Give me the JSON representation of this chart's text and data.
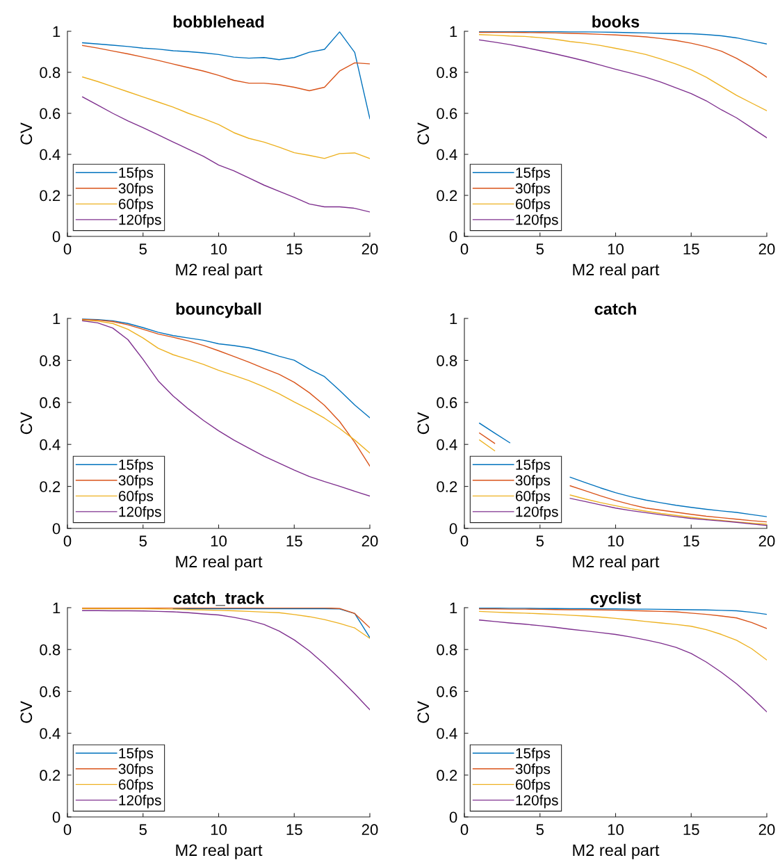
{
  "chart_data": [
    {
      "type": "line",
      "title": "bobblehead",
      "xlabel": "M2 real part",
      "ylabel": "CV",
      "x": [
        1,
        2,
        3,
        4,
        5,
        6,
        7,
        8,
        9,
        10,
        11,
        12,
        13,
        14,
        15,
        16,
        17,
        18,
        19,
        20
      ],
      "xlim": [
        0,
        20
      ],
      "ylim": [
        0,
        1
      ],
      "xticks": [
        0,
        5,
        10,
        15,
        20
      ],
      "yticks": [
        0,
        0.2,
        0.4,
        0.6,
        0.8,
        1
      ],
      "legend": "bottom left",
      "series": [
        {
          "name": "15fps",
          "color": "#0072bd",
          "values": [
            0.944,
            0.938,
            0.932,
            0.926,
            0.918,
            0.913,
            0.905,
            0.901,
            0.895,
            0.887,
            0.874,
            0.869,
            0.872,
            0.862,
            0.872,
            0.898,
            0.912,
            0.997,
            0.897,
            0.574
          ]
        },
        {
          "name": "30fps",
          "color": "#d95319",
          "values": [
            0.931,
            0.918,
            0.904,
            0.89,
            0.874,
            0.858,
            0.84,
            0.823,
            0.806,
            0.785,
            0.761,
            0.747,
            0.747,
            0.74,
            0.727,
            0.71,
            0.727,
            0.806,
            0.846,
            0.841
          ]
        },
        {
          "name": "60fps",
          "color": "#edb120",
          "values": [
            0.777,
            0.755,
            0.73,
            0.705,
            0.68,
            0.655,
            0.63,
            0.6,
            0.574,
            0.545,
            0.506,
            0.478,
            0.46,
            0.435,
            0.408,
            0.395,
            0.38,
            0.404,
            0.407,
            0.38
          ]
        },
        {
          "name": "120fps",
          "color": "#7e2f8e",
          "values": [
            0.68,
            0.64,
            0.6,
            0.563,
            0.53,
            0.495,
            0.46,
            0.425,
            0.39,
            0.348,
            0.32,
            0.285,
            0.25,
            0.22,
            0.19,
            0.158,
            0.144,
            0.144,
            0.137,
            0.119
          ]
        }
      ]
    },
    {
      "type": "line",
      "title": "books",
      "xlabel": "M2 real part",
      "ylabel": "CV",
      "x": [
        1,
        2,
        3,
        4,
        5,
        6,
        7,
        8,
        9,
        10,
        11,
        12,
        13,
        14,
        15,
        16,
        17,
        18,
        19,
        20
      ],
      "xlim": [
        0,
        20
      ],
      "ylim": [
        0,
        1
      ],
      "xticks": [
        0,
        5,
        10,
        15,
        20
      ],
      "yticks": [
        0,
        0.2,
        0.4,
        0.6,
        0.8,
        1
      ],
      "legend": "bottom left",
      "series": [
        {
          "name": "15fps",
          "color": "#0072bd",
          "values": [
            0.998,
            0.998,
            0.998,
            0.998,
            0.998,
            0.998,
            0.997,
            0.997,
            0.996,
            0.995,
            0.993,
            0.992,
            0.99,
            0.989,
            0.988,
            0.984,
            0.978,
            0.968,
            0.953,
            0.938
          ]
        },
        {
          "name": "30fps",
          "color": "#d95319",
          "values": [
            0.995,
            0.995,
            0.995,
            0.994,
            0.993,
            0.992,
            0.99,
            0.988,
            0.985,
            0.982,
            0.978,
            0.973,
            0.965,
            0.955,
            0.942,
            0.925,
            0.903,
            0.868,
            0.826,
            0.776
          ]
        },
        {
          "name": "60fps",
          "color": "#edb120",
          "values": [
            0.984,
            0.981,
            0.977,
            0.975,
            0.969,
            0.961,
            0.95,
            0.942,
            0.931,
            0.917,
            0.903,
            0.887,
            0.865,
            0.84,
            0.812,
            0.776,
            0.732,
            0.688,
            0.65,
            0.613
          ]
        },
        {
          "name": "120fps",
          "color": "#7e2f8e",
          "values": [
            0.958,
            0.947,
            0.935,
            0.921,
            0.906,
            0.89,
            0.873,
            0.855,
            0.835,
            0.815,
            0.796,
            0.776,
            0.752,
            0.724,
            0.696,
            0.661,
            0.617,
            0.578,
            0.529,
            0.481
          ]
        }
      ]
    },
    {
      "type": "line",
      "title": "bouncyball",
      "xlabel": "M2 real part",
      "ylabel": "CV",
      "x": [
        1,
        2,
        3,
        4,
        5,
        6,
        7,
        8,
        9,
        10,
        11,
        12,
        13,
        14,
        15,
        16,
        17,
        18,
        19,
        20
      ],
      "xlim": [
        0,
        20
      ],
      "ylim": [
        0,
        1
      ],
      "xticks": [
        0,
        5,
        10,
        15,
        20
      ],
      "yticks": [
        0,
        0.2,
        0.4,
        0.6,
        0.8,
        1
      ],
      "legend": "bottom left",
      "series": [
        {
          "name": "15fps",
          "color": "#0072bd",
          "values": [
            0.997,
            0.994,
            0.989,
            0.976,
            0.956,
            0.934,
            0.918,
            0.907,
            0.896,
            0.879,
            0.871,
            0.86,
            0.842,
            0.82,
            0.801,
            0.759,
            0.723,
            0.657,
            0.588,
            0.527
          ]
        },
        {
          "name": "30fps",
          "color": "#d95319",
          "values": [
            0.995,
            0.992,
            0.985,
            0.97,
            0.948,
            0.926,
            0.91,
            0.893,
            0.871,
            0.846,
            0.819,
            0.792,
            0.762,
            0.734,
            0.696,
            0.646,
            0.586,
            0.509,
            0.41,
            0.297
          ]
        },
        {
          "name": "60fps",
          "color": "#edb120",
          "values": [
            0.992,
            0.987,
            0.976,
            0.948,
            0.907,
            0.858,
            0.827,
            0.805,
            0.781,
            0.753,
            0.729,
            0.704,
            0.674,
            0.641,
            0.602,
            0.566,
            0.525,
            0.476,
            0.421,
            0.359
          ]
        },
        {
          "name": "120fps",
          "color": "#7e2f8e",
          "values": [
            0.989,
            0.979,
            0.954,
            0.899,
            0.805,
            0.703,
            0.63,
            0.569,
            0.514,
            0.465,
            0.421,
            0.382,
            0.344,
            0.311,
            0.278,
            0.247,
            0.223,
            0.201,
            0.177,
            0.154
          ]
        }
      ]
    },
    {
      "type": "line",
      "title": "catch",
      "xlabel": "M2 real part",
      "ylabel": "CV",
      "x": [
        1,
        2,
        3,
        4,
        5,
        6,
        7,
        8,
        9,
        10,
        11,
        12,
        13,
        14,
        15,
        16,
        17,
        18,
        19,
        20
      ],
      "xlim": [
        0,
        20
      ],
      "ylim": [
        0,
        1
      ],
      "xticks": [
        0,
        5,
        10,
        15,
        20
      ],
      "yticks": [
        0,
        0.2,
        0.4,
        0.6,
        0.8,
        1
      ],
      "legend": "bottom left",
      "series": [
        {
          "name": "15fps",
          "color": "#0072bd",
          "values": [
            0.501,
            0.454,
            0.408,
            null,
            null,
            null,
            0.244,
            0.218,
            0.193,
            0.17,
            0.151,
            0.135,
            0.122,
            0.11,
            0.1,
            0.091,
            0.083,
            0.076,
            0.066,
            0.056
          ]
        },
        {
          "name": "30fps",
          "color": "#d95319",
          "values": [
            0.454,
            0.405,
            null,
            null,
            null,
            null,
            0.203,
            0.179,
            0.155,
            0.133,
            0.114,
            0.097,
            0.087,
            0.077,
            0.067,
            0.058,
            0.051,
            0.044,
            0.037,
            0.031
          ]
        },
        {
          "name": "60fps",
          "color": "#edb120",
          "values": [
            0.421,
            0.37,
            null,
            null,
            null,
            null,
            0.159,
            0.14,
            0.123,
            0.108,
            0.094,
            0.082,
            0.071,
            0.062,
            0.053,
            0.045,
            0.038,
            0.031,
            0.025,
            0.02
          ]
        },
        {
          "name": "120fps",
          "color": "#7e2f8e",
          "values": [
            null,
            null,
            null,
            null,
            null,
            null,
            0.143,
            0.128,
            0.112,
            0.097,
            0.085,
            0.075,
            0.065,
            0.056,
            0.047,
            0.041,
            0.035,
            0.029,
            0.021,
            0.014
          ]
        }
      ]
    },
    {
      "type": "line",
      "title": "catch_track",
      "xlabel": "M2 real part",
      "ylabel": "CV",
      "x": [
        1,
        2,
        3,
        4,
        5,
        6,
        7,
        8,
        9,
        10,
        11,
        12,
        13,
        14,
        15,
        16,
        17,
        18,
        19,
        20
      ],
      "xlim": [
        0,
        20
      ],
      "ylim": [
        0,
        1
      ],
      "xticks": [
        0,
        5,
        10,
        15,
        20
      ],
      "yticks": [
        0,
        0.2,
        0.4,
        0.6,
        0.8,
        1
      ],
      "legend": "bottom left",
      "series": [
        {
          "name": "15fps",
          "color": "#0072bd",
          "values": [
            null,
            null,
            null,
            null,
            null,
            null,
            0.995,
            0.995,
            0.995,
            0.995,
            0.995,
            0.995,
            0.995,
            0.995,
            0.995,
            0.995,
            0.995,
            0.994,
            0.972,
            0.857
          ]
        },
        {
          "name": "30fps",
          "color": "#d95319",
          "values": [
            0.999,
            0.999,
            0.999,
            0.999,
            0.999,
            0.999,
            0.999,
            0.999,
            0.999,
            0.999,
            0.999,
            0.999,
            0.999,
            0.999,
            0.999,
            0.999,
            0.999,
            0.996,
            0.972,
            0.904
          ]
        },
        {
          "name": "60fps",
          "color": "#edb120",
          "values": [
            0.995,
            0.995,
            0.995,
            0.995,
            0.995,
            0.994,
            0.993,
            0.991,
            0.989,
            0.987,
            0.985,
            0.982,
            0.979,
            0.976,
            0.967,
            0.957,
            0.943,
            0.925,
            0.903,
            0.853
          ]
        },
        {
          "name": "120fps",
          "color": "#7e2f8e",
          "values": [
            0.986,
            0.986,
            0.985,
            0.985,
            0.984,
            0.982,
            0.98,
            0.976,
            0.97,
            0.965,
            0.954,
            0.94,
            0.92,
            0.888,
            0.846,
            0.793,
            0.73,
            0.661,
            0.589,
            0.512
          ]
        }
      ]
    },
    {
      "type": "line",
      "title": "cyclist",
      "xlabel": "M2 real part",
      "ylabel": "CV",
      "x": [
        1,
        2,
        3,
        4,
        5,
        6,
        7,
        8,
        9,
        10,
        11,
        12,
        13,
        14,
        15,
        16,
        17,
        18,
        19,
        20
      ],
      "xlim": [
        0,
        20
      ],
      "ylim": [
        0,
        1
      ],
      "xticks": [
        0,
        5,
        10,
        15,
        20
      ],
      "yticks": [
        0,
        0.2,
        0.4,
        0.6,
        0.8,
        1
      ],
      "legend": "bottom left",
      "series": [
        {
          "name": "15fps",
          "color": "#0072bd",
          "values": [
            0.998,
            0.998,
            0.997,
            0.997,
            0.996,
            0.996,
            0.995,
            0.995,
            0.994,
            0.994,
            0.993,
            0.993,
            0.992,
            0.991,
            0.99,
            0.989,
            0.987,
            0.985,
            0.978,
            0.968
          ]
        },
        {
          "name": "30fps",
          "color": "#d95319",
          "values": [
            0.994,
            0.994,
            0.993,
            0.993,
            0.992,
            0.991,
            0.99,
            0.99,
            0.989,
            0.988,
            0.986,
            0.984,
            0.982,
            0.98,
            0.974,
            0.968,
            0.96,
            0.951,
            0.929,
            0.9
          ]
        },
        {
          "name": "60fps",
          "color": "#edb120",
          "values": [
            0.982,
            0.979,
            0.976,
            0.974,
            0.971,
            0.968,
            0.964,
            0.96,
            0.955,
            0.949,
            0.942,
            0.934,
            0.927,
            0.92,
            0.911,
            0.895,
            0.872,
            0.844,
            0.804,
            0.75
          ]
        },
        {
          "name": "120fps",
          "color": "#7e2f8e",
          "values": [
            0.941,
            0.934,
            0.927,
            0.921,
            0.914,
            0.906,
            0.897,
            0.889,
            0.881,
            0.872,
            0.86,
            0.846,
            0.83,
            0.81,
            0.781,
            0.74,
            0.691,
            0.636,
            0.572,
            0.502
          ]
        }
      ]
    }
  ]
}
